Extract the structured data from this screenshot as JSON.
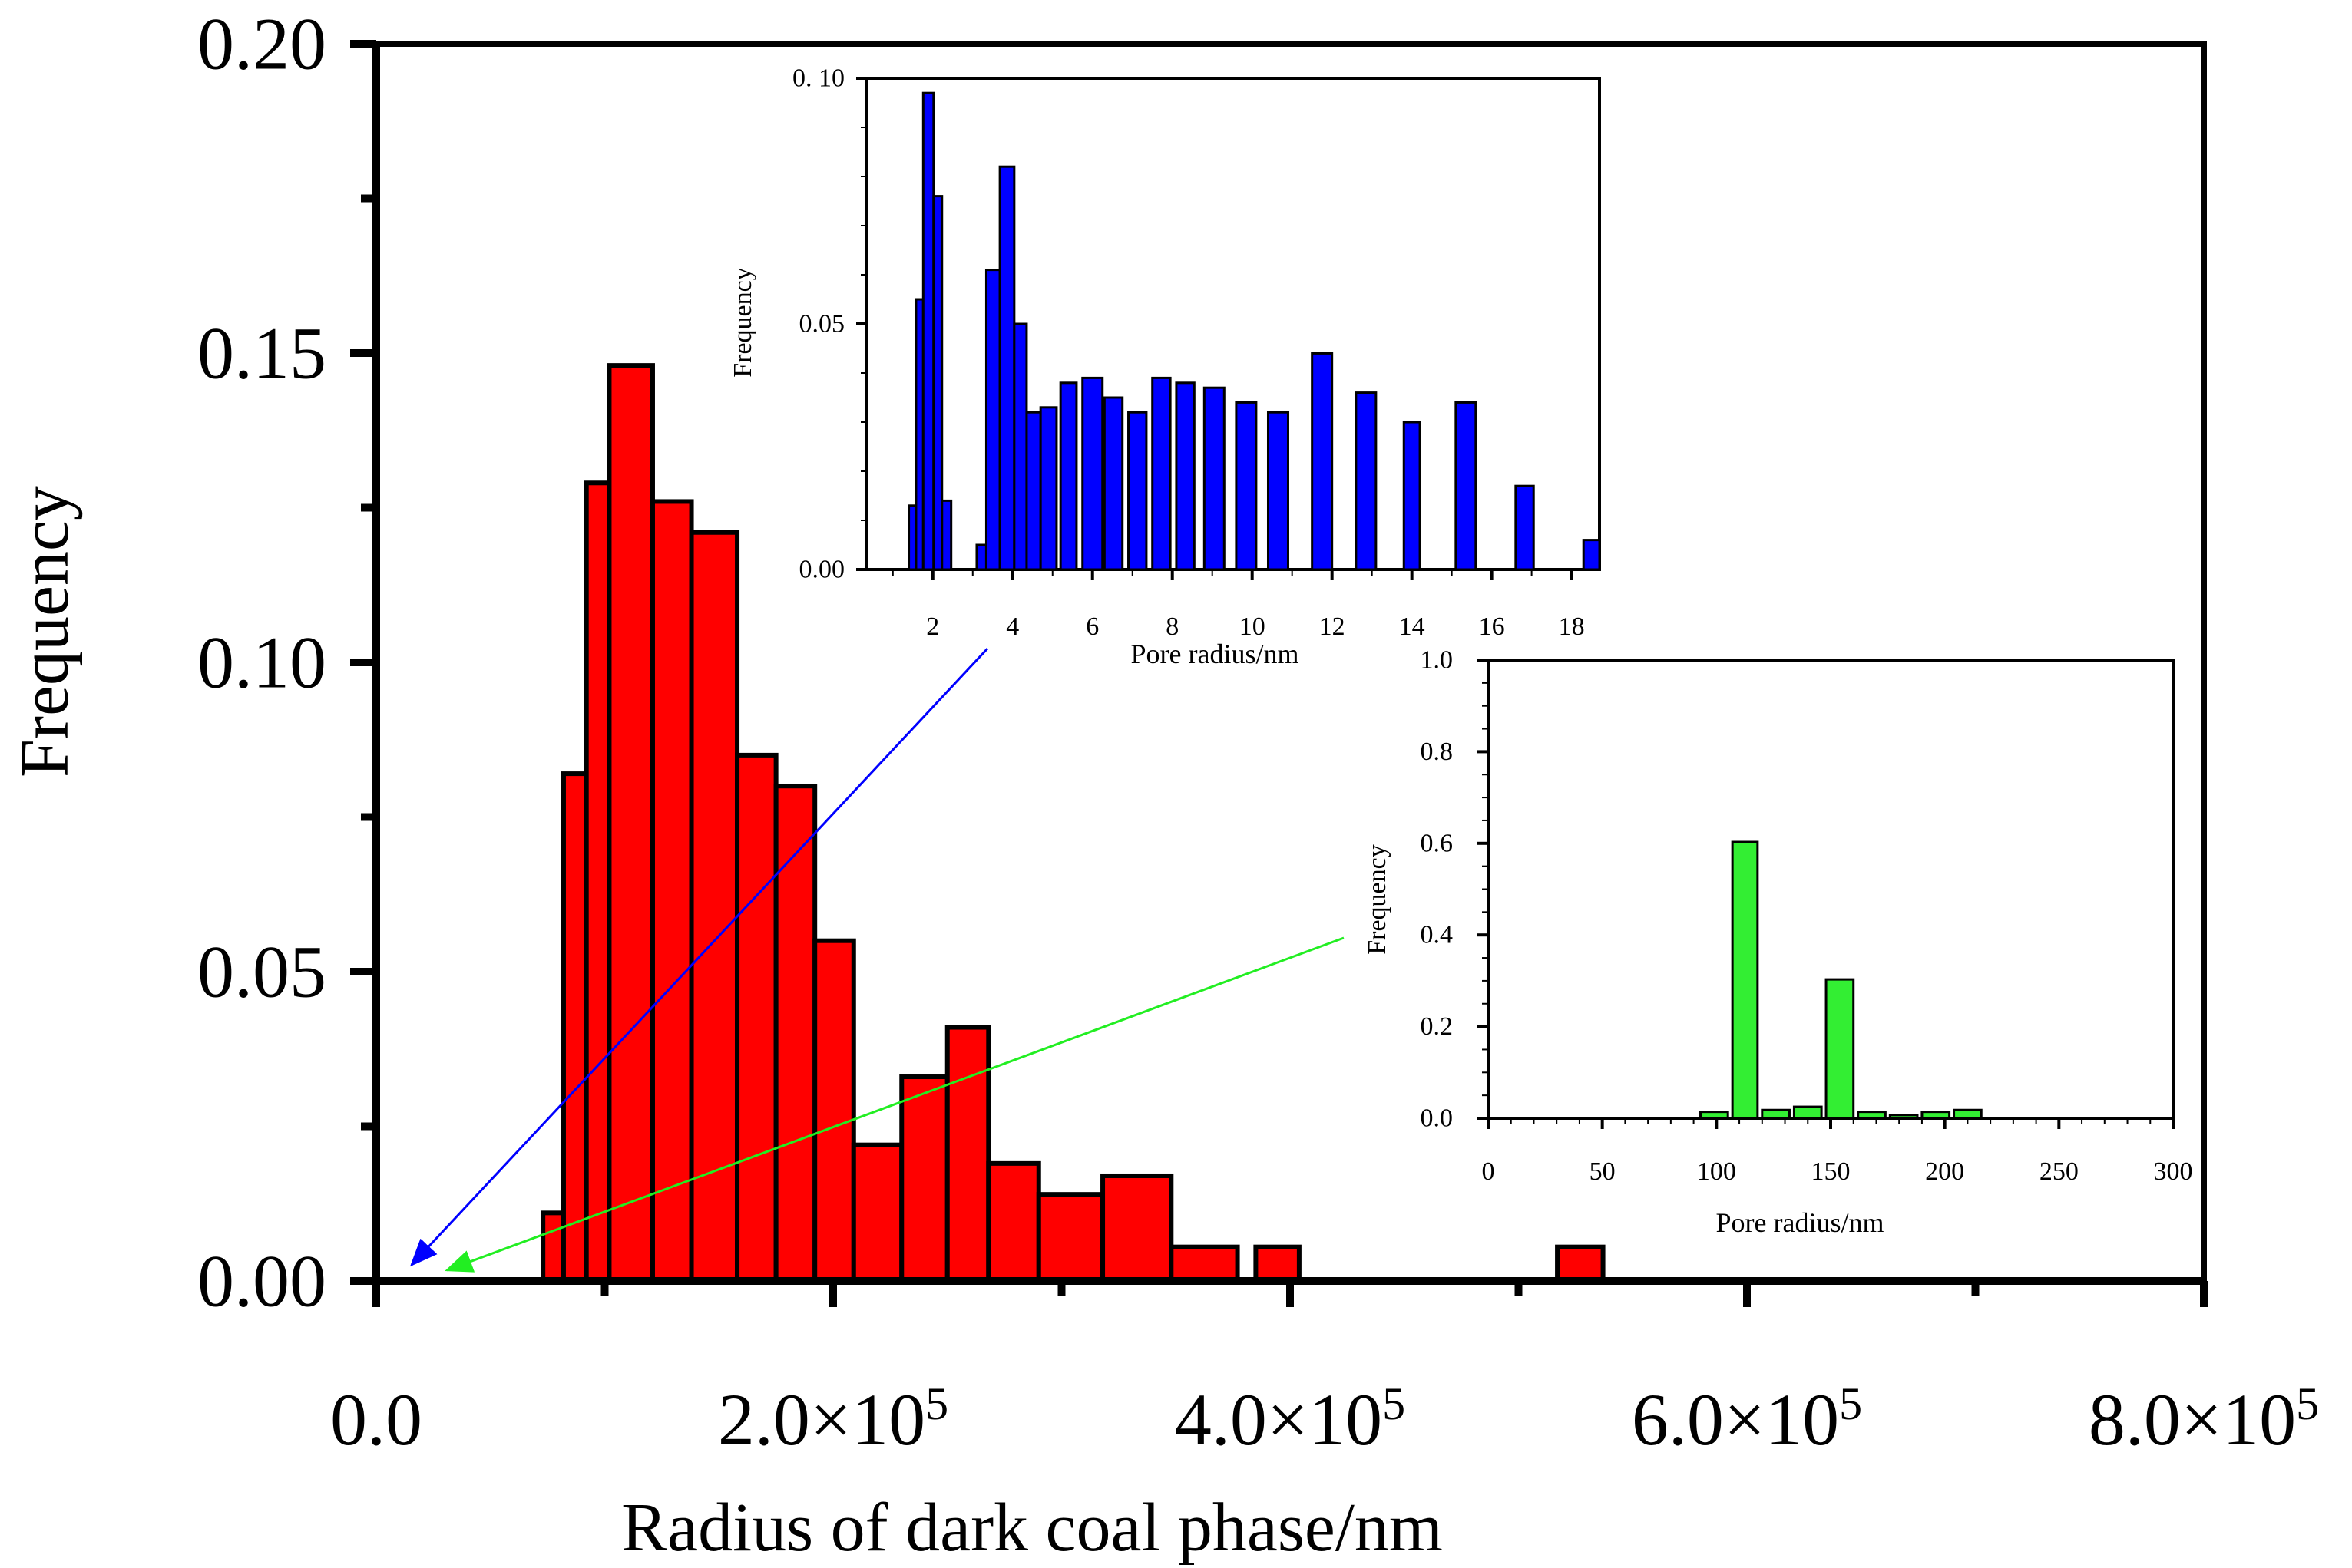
{
  "chart_data": [
    {
      "id": "main",
      "type": "bar",
      "xlabel": "Radius of dark coal phase/nm",
      "ylabel": "Frequency",
      "xlim": [
        0,
        800000
      ],
      "ylim": [
        0,
        0.2
      ],
      "xticks": [
        {
          "v": 0,
          "label": "0.0"
        },
        {
          "v": 200000,
          "label": "2.0×10",
          "exp": "5"
        },
        {
          "v": 400000,
          "label": "4.0×10",
          "exp": "5"
        },
        {
          "v": 600000,
          "label": "6.0×10",
          "exp": "5"
        },
        {
          "v": 800000,
          "label": "8.0×10",
          "exp": "5"
        }
      ],
      "yticks": [
        {
          "v": 0,
          "label": "0.00"
        },
        {
          "v": 0.05,
          "label": "0.05"
        },
        {
          "v": 0.1,
          "label": "0.10"
        },
        {
          "v": 0.15,
          "label": "0.15"
        },
        {
          "v": 0.2,
          "label": "0.20"
        }
      ],
      "bar_color": "#ff0000",
      "bars": [
        {
          "x0": 73000,
          "x1": 82000,
          "y": 0.011
        },
        {
          "x0": 82000,
          "x1": 92000,
          "y": 0.082
        },
        {
          "x0": 92000,
          "x1": 102000,
          "y": 0.129
        },
        {
          "x0": 102000,
          "x1": 121000,
          "y": 0.148
        },
        {
          "x0": 121000,
          "x1": 138000,
          "y": 0.126
        },
        {
          "x0": 138000,
          "x1": 158000,
          "y": 0.121
        },
        {
          "x0": 158000,
          "x1": 175000,
          "y": 0.085
        },
        {
          "x0": 175000,
          "x1": 192000,
          "y": 0.08
        },
        {
          "x0": 192000,
          "x1": 209000,
          "y": 0.055
        },
        {
          "x0": 209000,
          "x1": 230000,
          "y": 0.022
        },
        {
          "x0": 230000,
          "x1": 250000,
          "y": 0.033
        },
        {
          "x0": 250000,
          "x1": 268000,
          "y": 0.041
        },
        {
          "x0": 268000,
          "x1": 290000,
          "y": 0.019
        },
        {
          "x0": 290000,
          "x1": 318000,
          "y": 0.014
        },
        {
          "x0": 318000,
          "x1": 348000,
          "y": 0.017
        },
        {
          "x0": 348000,
          "x1": 377000,
          "y": 0.0055
        },
        {
          "x0": 385000,
          "x1": 404000,
          "y": 0.0055
        },
        {
          "x0": 517000,
          "x1": 537000,
          "y": 0.0055
        }
      ]
    },
    {
      "id": "inset-nano",
      "type": "bar",
      "xlabel": "Pore radius/nm",
      "ylabel": "Frequency",
      "xlim": [
        0.35,
        18.7
      ],
      "ylim": [
        0,
        0.1
      ],
      "xticks": [
        {
          "v": 2,
          "label": "2"
        },
        {
          "v": 4,
          "label": "4"
        },
        {
          "v": 6,
          "label": "6"
        },
        {
          "v": 8,
          "label": "8"
        },
        {
          "v": 10,
          "label": "10"
        },
        {
          "v": 12,
          "label": "12"
        },
        {
          "v": 14,
          "label": "14"
        },
        {
          "v": 16,
          "label": "16"
        },
        {
          "v": 18,
          "label": "18"
        }
      ],
      "yticks": [
        {
          "v": 0,
          "label": "0.00"
        },
        {
          "v": 0.05,
          "label": "0.05"
        },
        {
          "v": 0.1,
          "label": "0. 10"
        }
      ],
      "bar_color": "#0000ff",
      "bars": [
        {
          "x0": 1.4,
          "x1": 1.58,
          "y": 0.013
        },
        {
          "x0": 1.58,
          "x1": 1.76,
          "y": 0.055
        },
        {
          "x0": 1.76,
          "x1": 2.02,
          "y": 0.097
        },
        {
          "x0": 2.02,
          "x1": 2.23,
          "y": 0.076
        },
        {
          "x0": 2.23,
          "x1": 2.46,
          "y": 0.014
        },
        {
          "x0": 3.1,
          "x1": 3.34,
          "y": 0.005
        },
        {
          "x0": 3.34,
          "x1": 3.68,
          "y": 0.061
        },
        {
          "x0": 3.68,
          "x1": 4.04,
          "y": 0.082
        },
        {
          "x0": 4.04,
          "x1": 4.35,
          "y": 0.05
        },
        {
          "x0": 4.35,
          "x1": 4.7,
          "y": 0.032
        },
        {
          "x0": 4.7,
          "x1": 5.1,
          "y": 0.033
        },
        {
          "x0": 5.2,
          "x1": 5.6,
          "y": 0.038
        },
        {
          "x0": 5.75,
          "x1": 6.25,
          "y": 0.039
        },
        {
          "x0": 6.3,
          "x1": 6.75,
          "y": 0.035
        },
        {
          "x0": 6.9,
          "x1": 7.35,
          "y": 0.032
        },
        {
          "x0": 7.5,
          "x1": 7.95,
          "y": 0.039
        },
        {
          "x0": 8.1,
          "x1": 8.55,
          "y": 0.038
        },
        {
          "x0": 8.8,
          "x1": 9.3,
          "y": 0.037
        },
        {
          "x0": 9.6,
          "x1": 10.1,
          "y": 0.034
        },
        {
          "x0": 10.4,
          "x1": 10.9,
          "y": 0.032
        },
        {
          "x0": 11.5,
          "x1": 12.0,
          "y": 0.044
        },
        {
          "x0": 12.6,
          "x1": 13.1,
          "y": 0.036
        },
        {
          "x0": 13.8,
          "x1": 14.2,
          "y": 0.03
        },
        {
          "x0": 15.1,
          "x1": 15.6,
          "y": 0.034
        },
        {
          "x0": 16.6,
          "x1": 17.05,
          "y": 0.017
        },
        {
          "x0": 18.3,
          "x1": 18.7,
          "y": 0.006
        }
      ]
    },
    {
      "id": "inset-meso",
      "type": "bar",
      "xlabel": "Pore radius/nm",
      "ylabel": "Frequency",
      "xlim": [
        0,
        300
      ],
      "ylim": [
        0,
        1.0
      ],
      "xticks": [
        {
          "v": 0,
          "label": "0"
        },
        {
          "v": 50,
          "label": "50"
        },
        {
          "v": 100,
          "label": "100"
        },
        {
          "v": 150,
          "label": "150"
        },
        {
          "v": 200,
          "label": "200"
        },
        {
          "v": 250,
          "label": "250"
        },
        {
          "v": 300,
          "label": "300"
        }
      ],
      "yticks": [
        {
          "v": 0,
          "label": "0.0"
        },
        {
          "v": 0.2,
          "label": "0.2"
        },
        {
          "v": 0.4,
          "label": "0.4"
        },
        {
          "v": 0.6,
          "label": "0.6"
        },
        {
          "v": 0.8,
          "label": "0.8"
        },
        {
          "v": 1.0,
          "label": "1.0"
        }
      ],
      "bar_color": "#33ee33",
      "bars": [
        {
          "x0": 93,
          "x1": 105,
          "y": 0.014
        },
        {
          "x0": 107,
          "x1": 118,
          "y": 0.603
        },
        {
          "x0": 120,
          "x1": 132,
          "y": 0.018
        },
        {
          "x0": 134,
          "x1": 146,
          "y": 0.025
        },
        {
          "x0": 148,
          "x1": 160,
          "y": 0.303
        },
        {
          "x0": 162,
          "x1": 174,
          "y": 0.014
        },
        {
          "x0": 176,
          "x1": 188,
          "y": 0.007
        },
        {
          "x0": 190,
          "x1": 202,
          "y": 0.014
        },
        {
          "x0": 204,
          "x1": 216,
          "y": 0.018
        }
      ]
    }
  ]
}
